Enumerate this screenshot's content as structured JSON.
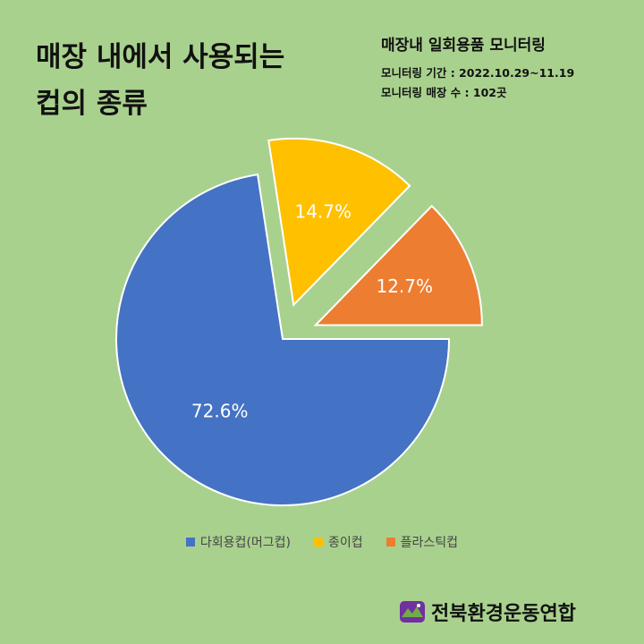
{
  "title": {
    "line1": "매장 내에서 사용되는",
    "line2": "컵의 종류"
  },
  "monitoring": {
    "heading": "매장내 일회용품 모니터링",
    "period": "모니터링 기간 : 2022.10.29~11.19",
    "stores": "모니터링 매장 수 : 102곳"
  },
  "chart_data": {
    "type": "pie",
    "categories": [
      "다회용컵(머그컵)",
      "종이컵",
      "플라스틱컵"
    ],
    "values": [
      72.6,
      14.7,
      12.7
    ],
    "data_labels": [
      "72.6%",
      "14.7%",
      "12.7%"
    ],
    "colors": [
      "#4472c4",
      "#ffc000",
      "#ed7d31"
    ],
    "exploded": [
      false,
      true,
      true
    ],
    "legend": "bottom"
  },
  "legend": {
    "items": [
      {
        "label": "다회용컵(머그컵)",
        "color": "#4472c4"
      },
      {
        "label": "종이컵",
        "color": "#ffc000"
      },
      {
        "label": "플라스틱컵",
        "color": "#ed7d31"
      }
    ]
  },
  "footer": {
    "org_name": "전북환경운동연합"
  }
}
